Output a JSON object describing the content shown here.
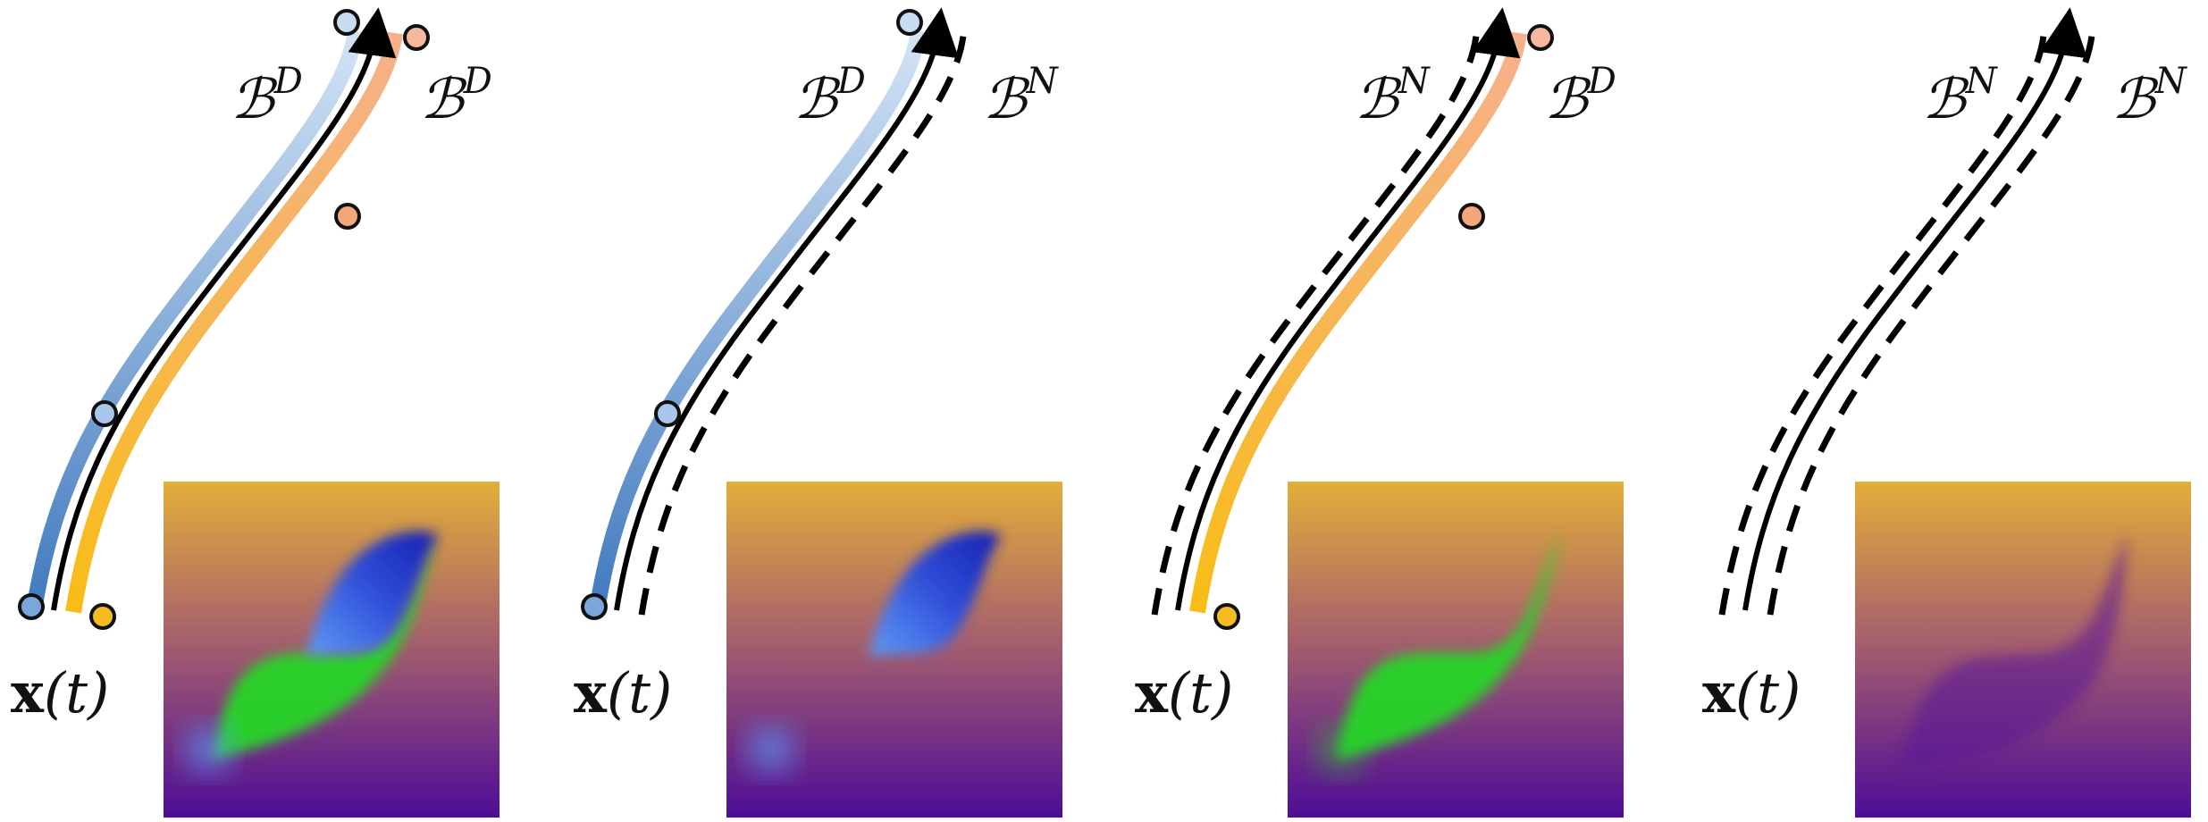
{
  "panels": [
    {
      "left_label": "ℬ",
      "left_sup": "D",
      "right_label": "ℬ",
      "right_sup": "D",
      "left_boundary": "dirichlet",
      "right_boundary": "dirichlet",
      "left_color": "#5b8fd0",
      "right_color": "#f2a36f",
      "inset_blobs": [
        "blue",
        "green"
      ],
      "x_label_bold": "x",
      "x_label_rest": "(t)"
    },
    {
      "left_label": "ℬ",
      "left_sup": "D",
      "right_label": "ℬ",
      "right_sup": "N",
      "left_boundary": "dirichlet",
      "right_boundary": "neumann",
      "left_color": "#5b8fd0",
      "right_color": "",
      "inset_blobs": [
        "blue"
      ],
      "x_label_bold": "x",
      "x_label_rest": "(t)"
    },
    {
      "left_label": "ℬ",
      "left_sup": "N",
      "right_label": "ℬ",
      "right_sup": "D",
      "left_boundary": "neumann",
      "right_boundary": "dirichlet",
      "left_color": "",
      "right_color": "#f2a36f",
      "inset_blobs": [
        "green"
      ],
      "x_label_bold": "x",
      "x_label_rest": "(t)"
    },
    {
      "left_label": "ℬ",
      "left_sup": "N",
      "right_label": "ℬ",
      "right_sup": "N",
      "left_boundary": "neumann",
      "right_boundary": "neumann",
      "left_color": "",
      "right_color": "",
      "inset_blobs": [],
      "x_label_bold": "x",
      "x_label_rest": "(t)"
    }
  ],
  "colors": {
    "blue_dark": "#3f78be",
    "blue_light": "#c9dcf2",
    "orange_dark": "#f7bd1c",
    "orange_light": "#f6b38e",
    "gold_top": "#e3ae39",
    "purple_bottom": "#4e0c96",
    "inset_blue": "#1736d8",
    "inset_green": "#27d628"
  }
}
